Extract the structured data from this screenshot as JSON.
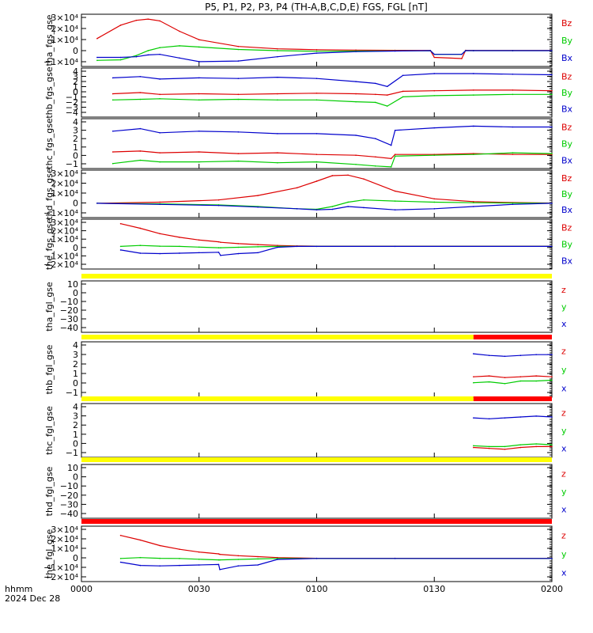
{
  "title": "P5, P1, P2, P3, P4 (TH-A,B,C,D,E) FGS, FGL [nT]",
  "colors": {
    "z": "#dd0000",
    "y": "#00cc00",
    "x": "#0000cc",
    "flag_yellow": "#ffff00",
    "flag_red": "#ff0000"
  },
  "xaxis": {
    "units": "hhmm",
    "date": "2024 Dec 28",
    "range": [
      "0000",
      "0200"
    ],
    "ticks": [
      "0000",
      "0030",
      "0100",
      "0130",
      "0200"
    ]
  },
  "chart_data": [
    {
      "type": "line",
      "ylabel": "tha_fgs_gse",
      "ylim": [
        -13000,
        30000
      ],
      "ytick_labels": [
        "3×10⁴",
        "2×10⁴",
        "1×10⁴",
        "0",
        "−1×10⁴"
      ],
      "legend": [
        "Bz",
        "By",
        "Bx"
      ],
      "x_minutes": [
        4,
        10,
        14,
        17,
        20,
        25,
        30,
        40,
        50,
        60,
        70,
        80,
        89,
        90,
        97,
        98,
        100,
        110,
        120
      ],
      "series": [
        {
          "key": "z",
          "values": [
            10000,
            21000,
            25000,
            26000,
            24500,
            16000,
            9000,
            3500,
            1500,
            800,
            500,
            300,
            200,
            -5500,
            -6500,
            300,
            200,
            200,
            200
          ]
        },
        {
          "key": "y",
          "values": [
            -8000,
            -7500,
            -4000,
            0,
            2500,
            4000,
            3000,
            1000,
            0,
            -500,
            -300,
            -200,
            0,
            -3000,
            -3000,
            0,
            0,
            0,
            0
          ]
        },
        {
          "key": "x",
          "values": [
            -5500,
            -5500,
            -5000,
            -3500,
            -3000,
            -6000,
            -9000,
            -8500,
            -5000,
            -2000,
            -800,
            -300,
            0,
            -3000,
            -3000,
            0,
            0,
            0,
            0
          ]
        }
      ]
    },
    {
      "type": "line",
      "ylabel": "thb_fgs_gse",
      "ylim": [
        -4,
        4
      ],
      "ytick_labels": [
        "4",
        "3",
        "2",
        "1",
        "0",
        "−1",
        "−2",
        "−3",
        "−4"
      ],
      "legend": [
        "Bz",
        "By",
        "Bx"
      ],
      "x_minutes": [
        8,
        15,
        20,
        30,
        40,
        50,
        60,
        70,
        75,
        78,
        82,
        90,
        100,
        110,
        120
      ],
      "series": [
        {
          "key": "z",
          "values": [
            -0.2,
            0,
            -0.3,
            -0.2,
            -0.3,
            -0.2,
            -0.1,
            -0.2,
            -0.3,
            -0.4,
            0.2,
            0.3,
            0.4,
            0.4,
            0.3
          ]
        },
        {
          "key": "y",
          "values": [
            -1.2,
            -1.1,
            -1.0,
            -1.2,
            -1.1,
            -1.2,
            -1.2,
            -1.5,
            -1.6,
            -2.2,
            -0.7,
            -0.5,
            -0.4,
            -0.3,
            -0.3
          ]
        },
        {
          "key": "x",
          "values": [
            2.4,
            2.6,
            2.2,
            2.4,
            2.3,
            2.5,
            2.3,
            1.8,
            1.5,
            1.0,
            2.8,
            3.1,
            3.1,
            3.0,
            2.9
          ]
        }
      ]
    },
    {
      "type": "line",
      "ylabel": "thc_fgs_gse",
      "ylim": [
        -2,
        4
      ],
      "ytick_labels": [
        "4",
        "3",
        "2",
        "1",
        "0",
        "−1"
      ],
      "legend": [
        "Bz",
        "By",
        "Bx"
      ],
      "x_minutes": [
        8,
        15,
        20,
        30,
        40,
        50,
        60,
        70,
        75,
        79,
        80,
        90,
        100,
        110,
        120
      ],
      "series": [
        {
          "key": "z",
          "values": [
            0.0,
            0.1,
            -0.1,
            0.0,
            -0.2,
            -0.1,
            -0.3,
            -0.4,
            -0.6,
            -0.8,
            -0.3,
            -0.3,
            -0.2,
            -0.3,
            -0.3
          ]
        },
        {
          "key": "y",
          "values": [
            -1.4,
            -1.0,
            -1.2,
            -1.2,
            -1.1,
            -1.3,
            -1.2,
            -1.5,
            -1.7,
            -1.8,
            -0.5,
            -0.4,
            -0.3,
            -0.1,
            -0.2
          ]
        },
        {
          "key": "x",
          "values": [
            2.5,
            2.8,
            2.3,
            2.5,
            2.4,
            2.2,
            2.2,
            2.0,
            1.6,
            0.8,
            2.6,
            2.9,
            3.1,
            3.0,
            3.0
          ]
        }
      ]
    },
    {
      "type": "line",
      "ylabel": "thd_fgs_gse",
      "ylim": [
        -13000,
        30000
      ],
      "ytick_labels": [
        "3×10⁴",
        "2×10⁴",
        "1×10⁴",
        "0",
        "−1×10⁴"
      ],
      "legend": [
        "Bz",
        "By",
        "Bx"
      ],
      "x_minutes": [
        4,
        20,
        35,
        45,
        55,
        60,
        64,
        68,
        72,
        80,
        90,
        100,
        110,
        120
      ],
      "series": [
        {
          "key": "z",
          "values": [
            0,
            1000,
            3000,
            7000,
            14000,
            20000,
            25000,
            25500,
            22000,
            11000,
            4000,
            1500,
            600,
            200
          ]
        },
        {
          "key": "y",
          "values": [
            0,
            -500,
            -1500,
            -3000,
            -5000,
            -5500,
            -3000,
            1000,
            3000,
            2000,
            1000,
            500,
            200,
            0
          ]
        },
        {
          "key": "x",
          "values": [
            0,
            -1000,
            -2000,
            -3500,
            -5000,
            -6000,
            -5500,
            -3000,
            -4000,
            -6000,
            -5000,
            -3000,
            -1000,
            0
          ]
        }
      ]
    },
    {
      "type": "line",
      "ylabel": "the_fgs_gse",
      "ylim": [
        -25000,
        30000
      ],
      "ytick_labels": [
        "3×10⁴",
        "2×10⁴",
        "1×10⁴",
        "0",
        "−1×10⁴",
        "−2×10⁴"
      ],
      "legend": [
        "Bz",
        "By",
        "Bx"
      ],
      "x_minutes": [
        10,
        15,
        20,
        25,
        30,
        35,
        35.5,
        40,
        45,
        50,
        55,
        60,
        80,
        120
      ],
      "series": [
        {
          "key": "z",
          "values": [
            25000,
            20000,
            14000,
            10000,
            7000,
            5000,
            4500,
            3000,
            2000,
            1000,
            500,
            200,
            200,
            200
          ]
        },
        {
          "key": "y",
          "values": [
            0,
            1000,
            200,
            0,
            -800,
            -1500,
            -1500,
            -1000,
            -500,
            0,
            0,
            0,
            0,
            0
          ]
        },
        {
          "key": "x",
          "values": [
            -4000,
            -7500,
            -8000,
            -7500,
            -7000,
            -6500,
            -10000,
            -8000,
            -7000,
            -1000,
            0,
            0,
            0,
            0
          ]
        }
      ]
    },
    {
      "type": "line",
      "ylabel": "tha_fgl_gse",
      "ylim": [
        -45,
        15
      ],
      "ytick_labels": [
        "10",
        "0",
        "−10",
        "−20",
        "−30",
        "−40"
      ],
      "legend": [
        "z",
        "y",
        "x"
      ],
      "flag_bar": [
        {
          "from": 0,
          "to": 120,
          "color": "yellow"
        }
      ],
      "x_minutes": [],
      "series": []
    },
    {
      "type": "line",
      "ylabel": "thb_fgl_gse",
      "ylim": [
        -2,
        4.5
      ],
      "ytick_labels": [
        "4",
        "3",
        "2",
        "1",
        "0",
        "−1"
      ],
      "legend": [
        "z",
        "y",
        "x"
      ],
      "flag_bar": [
        {
          "from": 0,
          "to": 100,
          "color": "yellow"
        },
        {
          "from": 100,
          "to": 120,
          "color": "red"
        }
      ],
      "x_minutes": [
        100,
        104,
        108,
        112,
        116,
        120
      ],
      "series": [
        {
          "key": "z",
          "values": [
            0.4,
            0.5,
            0.3,
            0.4,
            0.5,
            0.4
          ]
        },
        {
          "key": "y",
          "values": [
            -0.3,
            -0.2,
            -0.4,
            -0.1,
            -0.1,
            0.0
          ]
        },
        {
          "key": "x",
          "values": [
            3.1,
            2.9,
            2.8,
            2.9,
            3.0,
            3.0
          ]
        }
      ]
    },
    {
      "type": "line",
      "ylabel": "thc_fgl_gse",
      "ylim": [
        -1.5,
        4.5
      ],
      "ytick_labels": [
        "4",
        "3",
        "2",
        "1",
        "0",
        "−1"
      ],
      "legend": [
        "z",
        "y",
        "x"
      ],
      "flag_bar": [
        {
          "from": 0,
          "to": 100,
          "color": "yellow"
        },
        {
          "from": 100,
          "to": 120,
          "color": "red"
        }
      ],
      "x_minutes": [
        100,
        104,
        108,
        112,
        116,
        120
      ],
      "series": [
        {
          "key": "z",
          "values": [
            -0.4,
            -0.5,
            -0.6,
            -0.4,
            -0.3,
            -0.3
          ]
        },
        {
          "key": "y",
          "values": [
            -0.2,
            -0.3,
            -0.3,
            -0.1,
            0.0,
            -0.1
          ]
        },
        {
          "key": "x",
          "values": [
            2.9,
            2.8,
            2.9,
            3.0,
            3.1,
            3.0
          ]
        }
      ]
    },
    {
      "type": "line",
      "ylabel": "thd_fgl_gse",
      "ylim": [
        -45,
        15
      ],
      "ytick_labels": [
        "10",
        "0",
        "−10",
        "−20",
        "−30",
        "−40"
      ],
      "legend": [
        "z",
        "y",
        "x"
      ],
      "flag_bar": [
        {
          "from": 0,
          "to": 120,
          "color": "yellow"
        }
      ],
      "x_minutes": [],
      "series": []
    },
    {
      "type": "line",
      "ylabel": "the_fgl_gse",
      "ylim": [
        -25000,
        35000
      ],
      "ytick_labels": [
        "3×10⁴",
        "2×10⁴",
        "1×10⁴",
        "0",
        "−1×10⁴",
        "−2×10⁴"
      ],
      "legend": [
        "z",
        "y",
        "x"
      ],
      "flag_bar": [
        {
          "from": 0,
          "to": 120,
          "color": "red"
        }
      ],
      "x_minutes": [
        10,
        15,
        20,
        25,
        30,
        35,
        35.3,
        40,
        45,
        50,
        60,
        80,
        120
      ],
      "series": [
        {
          "key": "z",
          "values": [
            25000,
            20000,
            14000,
            10000,
            7000,
            5000,
            4500,
            3000,
            2000,
            1000,
            200,
            200,
            200
          ]
        },
        {
          "key": "y",
          "values": [
            0,
            1000,
            200,
            0,
            -800,
            -1500,
            -1500,
            -1000,
            -500,
            0,
            0,
            0,
            0
          ]
        },
        {
          "key": "x",
          "values": [
            -4000,
            -7500,
            -8000,
            -7500,
            -7000,
            -6500,
            -12000,
            -8000,
            -7000,
            -1000,
            0,
            0,
            0
          ]
        }
      ]
    }
  ]
}
